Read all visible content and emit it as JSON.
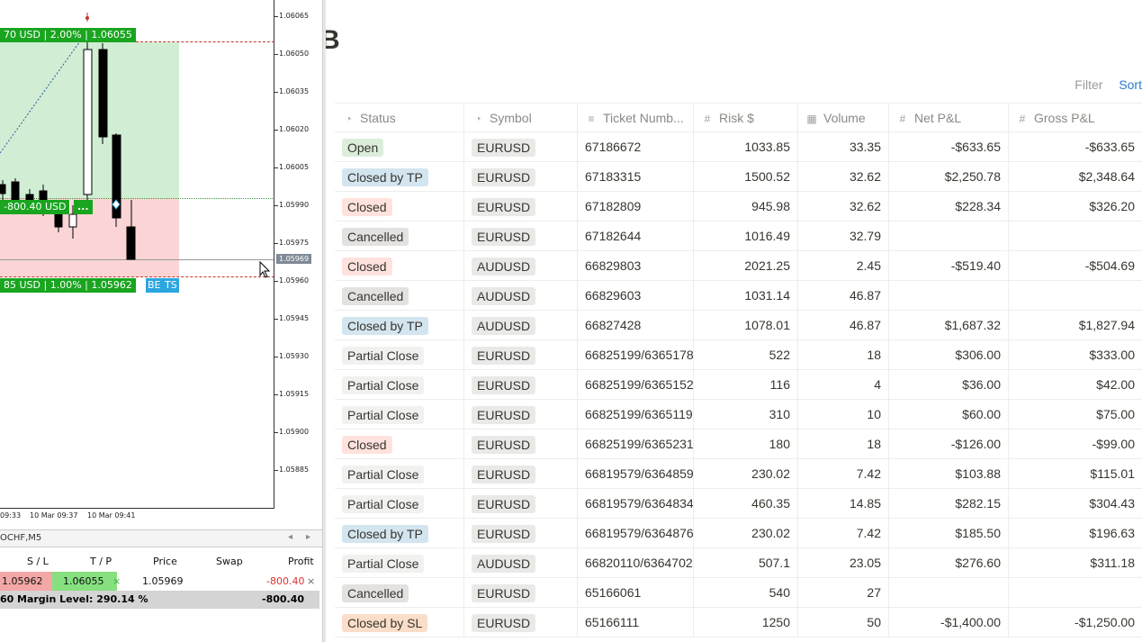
{
  "terminal": {
    "tp_tag": "70 USD | 2.00% | 1.06055",
    "pos_tag": "-800.40 USD",
    "pos_tag_more": "...",
    "sl_tag": "85 USD | 1.00% | 1.05962",
    "be_label": "BE",
    "ts_label": "TS",
    "price_labels": [
      "1.06065",
      "1.06050",
      "1.06035",
      "1.06020",
      "1.06005",
      "1.05990",
      "1.05975",
      "1.05960",
      "1.05945",
      "1.05930",
      "1.05915",
      "1.05900",
      "1.05885"
    ],
    "current_price": "1.05969",
    "time_labels": [
      "09:33",
      "10 Mar 09:37",
      "10 Mar 09:41"
    ],
    "chart_tab": "OCHF,M5",
    "trade_headers": {
      "sl": "S / L",
      "tp": "T / P",
      "price": "Price",
      "swap": "Swap",
      "profit": "Profit"
    },
    "trade_row": {
      "sl": "1.05962",
      "tp": "1.06055",
      "price": "1.05969",
      "profit": "-800.40"
    },
    "balance_row": {
      "prefix": "60",
      "margin": "Margin Level: 290.14 %",
      "profit": "-800.40"
    },
    "colors": {
      "tp_zone": "#d1eed4",
      "sl_zone": "#fbd5d5",
      "tag_green": "#19a51f",
      "tag_blue": "#2aa6e0"
    }
  },
  "db": {
    "title_fragment": "B",
    "controls": {
      "filter": "Filter",
      "sort": "Sort"
    },
    "headers": {
      "status": "Status",
      "symbol": "Symbol",
      "ticket": "Ticket Numb...",
      "risk": "Risk $",
      "volume": "Volume",
      "net": "Net P&L",
      "gross": "Gross P&L"
    },
    "header_icons": {
      "status": "◔",
      "symbol": "◔",
      "ticket": "≡",
      "risk": "#",
      "volume": "▦",
      "net": "#",
      "gross": "#"
    },
    "status_colors": {
      "Open": "#dbeddb",
      "Closed by TP": "#d3e5ef",
      "Closed": "#ffe2dd",
      "Cancelled": "#e3e2e0",
      "Partial Close": "#f1f1ef",
      "Closed by SL": "#fadec9"
    },
    "rows": [
      {
        "status": "Open",
        "symbol": "EURUSD",
        "ticket": "67186672",
        "risk": "1033.85",
        "volume": "33.35",
        "net": "-$633.65",
        "gross": "-$633.65"
      },
      {
        "status": "Closed by TP",
        "symbol": "EURUSD",
        "ticket": "67183315",
        "risk": "1500.52",
        "volume": "32.62",
        "net": "$2,250.78",
        "gross": "$2,348.64"
      },
      {
        "status": "Closed",
        "symbol": "EURUSD",
        "ticket": "67182809",
        "risk": "945.98",
        "volume": "32.62",
        "net": "$228.34",
        "gross": "$326.20"
      },
      {
        "status": "Cancelled",
        "symbol": "EURUSD",
        "ticket": "67182644",
        "risk": "1016.49",
        "volume": "32.79",
        "net": "",
        "gross": ""
      },
      {
        "status": "Closed",
        "symbol": "AUDUSD",
        "ticket": "66829803",
        "risk": "2021.25",
        "volume": "2.45",
        "net": "-$519.40",
        "gross": "-$504.69"
      },
      {
        "status": "Cancelled",
        "symbol": "AUDUSD",
        "ticket": "66829603",
        "risk": "1031.14",
        "volume": "46.87",
        "net": "",
        "gross": ""
      },
      {
        "status": "Closed by TP",
        "symbol": "AUDUSD",
        "ticket": "66827428",
        "risk": "1078.01",
        "volume": "46.87",
        "net": "$1,687.32",
        "gross": "$1,827.94"
      },
      {
        "status": "Partial Close",
        "symbol": "EURUSD",
        "ticket": "66825199/6365178",
        "risk": "522",
        "volume": "18",
        "net": "$306.00",
        "gross": "$333.00"
      },
      {
        "status": "Partial Close",
        "symbol": "EURUSD",
        "ticket": "66825199/6365152",
        "risk": "116",
        "volume": "4",
        "net": "$36.00",
        "gross": "$42.00"
      },
      {
        "status": "Partial Close",
        "symbol": "EURUSD",
        "ticket": "66825199/6365119",
        "risk": "310",
        "volume": "10",
        "net": "$60.00",
        "gross": "$75.00"
      },
      {
        "status": "Closed",
        "symbol": "EURUSD",
        "ticket": "66825199/6365231",
        "risk": "180",
        "volume": "18",
        "net": "-$126.00",
        "gross": "-$99.00"
      },
      {
        "status": "Partial Close",
        "symbol": "EURUSD",
        "ticket": "66819579/6364859",
        "risk": "230.02",
        "volume": "7.42",
        "net": "$103.88",
        "gross": "$115.01"
      },
      {
        "status": "Partial Close",
        "symbol": "EURUSD",
        "ticket": "66819579/6364834",
        "risk": "460.35",
        "volume": "14.85",
        "net": "$282.15",
        "gross": "$304.43"
      },
      {
        "status": "Closed by TP",
        "symbol": "EURUSD",
        "ticket": "66819579/6364876",
        "risk": "230.02",
        "volume": "7.42",
        "net": "$185.50",
        "gross": "$196.63"
      },
      {
        "status": "Partial Close",
        "symbol": "AUDUSD",
        "ticket": "66820110/6364702",
        "risk": "507.1",
        "volume": "23.05",
        "net": "$276.60",
        "gross": "$311.18"
      },
      {
        "status": "Cancelled",
        "symbol": "EURUSD",
        "ticket": "65166061",
        "risk": "540",
        "volume": "27",
        "net": "",
        "gross": ""
      },
      {
        "status": "Closed by SL",
        "symbol": "EURUSD",
        "ticket": "65166111",
        "risk": "1250",
        "volume": "50",
        "net": "-$1,400.00",
        "gross": "-$1,250.00"
      }
    ]
  }
}
